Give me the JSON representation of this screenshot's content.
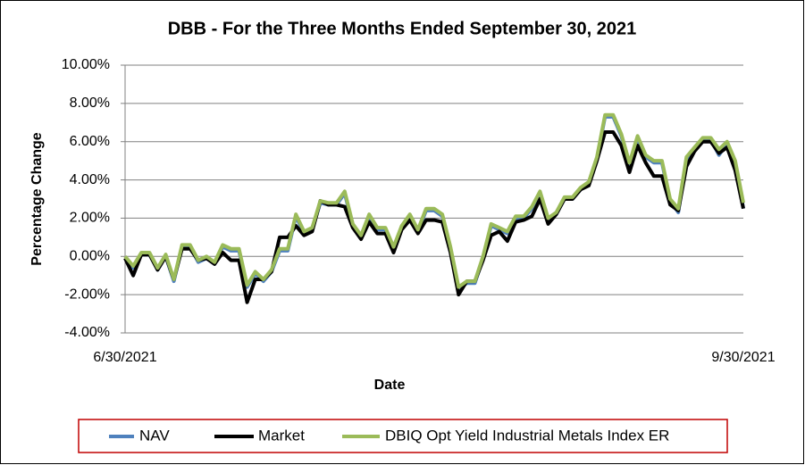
{
  "chart_data": {
    "type": "line",
    "title": "DBB - For the Three Months Ended September 30, 2021",
    "x_label": "Date",
    "y_label": "Percentage Change",
    "categories": [
      "6/30/2021",
      null,
      null,
      null,
      null,
      null,
      null,
      null,
      null,
      null,
      null,
      null,
      null,
      null,
      null,
      null,
      null,
      null,
      null,
      null,
      null,
      null,
      null,
      null,
      null,
      null,
      null,
      null,
      null,
      null,
      null,
      null,
      null,
      null,
      null,
      null,
      null,
      null,
      null,
      null,
      null,
      null,
      null,
      null,
      null,
      null,
      null,
      null,
      null,
      null,
      null,
      null,
      null,
      null,
      null,
      null,
      null,
      null,
      null,
      null,
      null,
      null,
      null,
      null,
      null,
      null,
      null,
      null,
      null,
      null,
      null,
      null,
      null,
      null,
      null,
      null,
      "9/30/2021"
    ],
    "series": [
      {
        "name": "NAV",
        "color": "#4f81bd",
        "values": [
          -0.1,
          -0.6,
          0.1,
          0.1,
          -0.7,
          0.0,
          -1.3,
          0.5,
          0.5,
          -0.3,
          -0.1,
          -0.4,
          0.5,
          0.3,
          0.3,
          -1.6,
          -0.9,
          -1.3,
          -0.8,
          0.3,
          0.3,
          2.1,
          1.2,
          1.4,
          2.8,
          2.7,
          2.7,
          3.3,
          1.6,
          1.0,
          2.1,
          1.4,
          1.4,
          0.4,
          1.5,
          2.1,
          1.3,
          2.4,
          2.4,
          2.1,
          0.4,
          -1.7,
          -1.4,
          -1.4,
          -0.1,
          1.6,
          1.4,
          1.2,
          2.0,
          2.0,
          2.5,
          3.3,
          1.9,
          2.2,
          3.0,
          3.0,
          3.5,
          3.8,
          5.1,
          7.3,
          7.3,
          6.3,
          4.8,
          6.2,
          5.2,
          4.9,
          4.9,
          2.9,
          2.3,
          5.1,
          5.6,
          6.1,
          6.1,
          5.3,
          5.9,
          4.9,
          2.5
        ]
      },
      {
        "name": "Market",
        "color": "#000000",
        "values": [
          -0.1,
          -1.0,
          0.1,
          0.1,
          -0.7,
          0.0,
          -1.2,
          0.4,
          0.4,
          -0.2,
          -0.1,
          -0.4,
          0.2,
          -0.2,
          -0.2,
          -2.4,
          -1.2,
          -1.2,
          -0.8,
          1.0,
          1.0,
          1.6,
          1.1,
          1.3,
          2.9,
          2.7,
          2.7,
          2.6,
          1.5,
          0.9,
          1.8,
          1.2,
          1.2,
          0.2,
          1.4,
          1.9,
          1.2,
          1.9,
          1.9,
          1.8,
          0.2,
          -2.0,
          -1.3,
          -1.3,
          -0.2,
          1.1,
          1.3,
          0.8,
          1.8,
          1.9,
          2.1,
          3.0,
          1.7,
          2.2,
          3.0,
          3.0,
          3.5,
          3.7,
          5.0,
          6.5,
          6.5,
          5.8,
          4.4,
          5.8,
          4.9,
          4.2,
          4.2,
          2.7,
          2.4,
          4.7,
          5.5,
          6.0,
          6.0,
          5.4,
          5.7,
          4.5,
          2.5
        ]
      },
      {
        "name": "DBIQ Opt Yield Industrial Metals Index ER",
        "color": "#9bbb59",
        "values": [
          0.0,
          -0.5,
          0.2,
          0.2,
          -0.6,
          0.1,
          -1.2,
          0.6,
          0.6,
          -0.2,
          0.0,
          -0.3,
          0.6,
          0.4,
          0.4,
          -1.5,
          -0.8,
          -1.2,
          -0.7,
          0.4,
          0.4,
          2.2,
          1.3,
          1.5,
          2.9,
          2.8,
          2.8,
          3.4,
          1.7,
          1.1,
          2.2,
          1.5,
          1.5,
          0.5,
          1.6,
          2.2,
          1.4,
          2.5,
          2.5,
          2.2,
          0.5,
          -1.6,
          -1.3,
          -1.3,
          0.0,
          1.7,
          1.5,
          1.3,
          2.1,
          2.1,
          2.6,
          3.4,
          2.0,
          2.3,
          3.1,
          3.1,
          3.6,
          3.9,
          5.2,
          7.4,
          7.4,
          6.4,
          4.9,
          6.3,
          5.3,
          5.0,
          5.0,
          3.0,
          2.5,
          5.2,
          5.7,
          6.2,
          6.2,
          5.6,
          6.0,
          5.0,
          2.8
        ]
      }
    ],
    "ylim": [
      -4,
      10
    ],
    "yticks": [
      {
        "value": -4,
        "label": "-4.00%"
      },
      {
        "value": -2,
        "label": "-2.00%"
      },
      {
        "value": 0,
        "label": "0.00%"
      },
      {
        "value": 2,
        "label": "2.00%"
      },
      {
        "value": 4,
        "label": "4.00%"
      },
      {
        "value": 6,
        "label": "6.00%"
      },
      {
        "value": 8,
        "label": "8.00%"
      },
      {
        "value": 10,
        "label": "10.00%"
      }
    ],
    "grid": true,
    "legend": "bottom"
  }
}
